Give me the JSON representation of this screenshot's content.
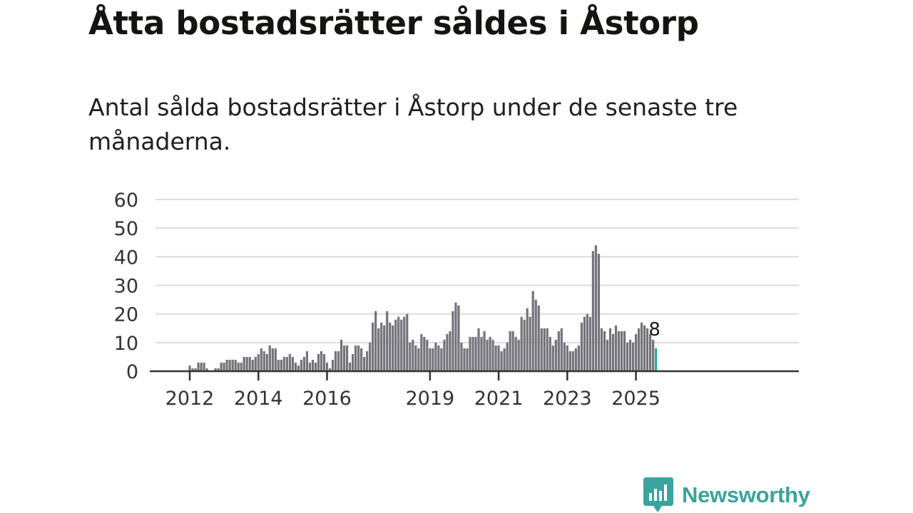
{
  "title": "Åtta bostadsrätter såldes i Åstorp",
  "subtitle": "Antal sålda bostadsrätter i Åstorp under de senaste tre månaderna.",
  "brand": {
    "name": "Newsworthy",
    "icon": "newsworthy-chart-bubble-icon"
  },
  "colors": {
    "bar": "#74737a",
    "highlight": "#2aa6a0",
    "grid": "#dcdcdc",
    "axis": "#333333",
    "brand": "#3aa39d"
  },
  "chart_data": {
    "type": "bar",
    "title": "Åtta bostadsrätter såldes i Åstorp",
    "subtitle": "Antal sålda bostadsrätter i Åstorp under de senaste tre månaderna.",
    "xlabel": "",
    "ylabel": "",
    "ylim": [
      0,
      60
    ],
    "yticks": [
      "0",
      "10",
      "20",
      "30",
      "40",
      "50",
      "60"
    ],
    "xticks": [
      "2012",
      "2014",
      "2016",
      "2019",
      "2021",
      "2023",
      "2025"
    ],
    "grid": true,
    "legend": "none",
    "first_period": "2011-05",
    "frequency": "monthly",
    "values": [
      0,
      0,
      0,
      0,
      0,
      0,
      0,
      0,
      2,
      1,
      1,
      3,
      3,
      3,
      1,
      0,
      0,
      1,
      1,
      3,
      3,
      4,
      4,
      4,
      4,
      3,
      3,
      5,
      5,
      5,
      4,
      5,
      6,
      8,
      7,
      6,
      9,
      8,
      8,
      4,
      4,
      5,
      5,
      6,
      5,
      3,
      2,
      4,
      5,
      7,
      3,
      4,
      3,
      6,
      7,
      6,
      3,
      1,
      4,
      7,
      7,
      11,
      9,
      9,
      3,
      6,
      9,
      9,
      8,
      5,
      7,
      10,
      17,
      21,
      15,
      17,
      16,
      21,
      17,
      16,
      18,
      19,
      18,
      19,
      20,
      10,
      11,
      9,
      8,
      13,
      12,
      11,
      8,
      8,
      10,
      9,
      8,
      11,
      13,
      14,
      21,
      24,
      23,
      10,
      8,
      8,
      12,
      12,
      12,
      15,
      12,
      14,
      11,
      12,
      11,
      9,
      9,
      7,
      8,
      10,
      14,
      14,
      12,
      11,
      19,
      18,
      22,
      19,
      28,
      25,
      23,
      15,
      15,
      15,
      12,
      9,
      11,
      14,
      15,
      10,
      9,
      7,
      7,
      8,
      9,
      17,
      19,
      20,
      19,
      42,
      44,
      41,
      15,
      14,
      11,
      15,
      13,
      16,
      14,
      14,
      14,
      10,
      11,
      10,
      13,
      15,
      17,
      16,
      15,
      13,
      11,
      8
    ],
    "highlight_last": true,
    "annotation": {
      "label": "8",
      "value": 8
    }
  }
}
